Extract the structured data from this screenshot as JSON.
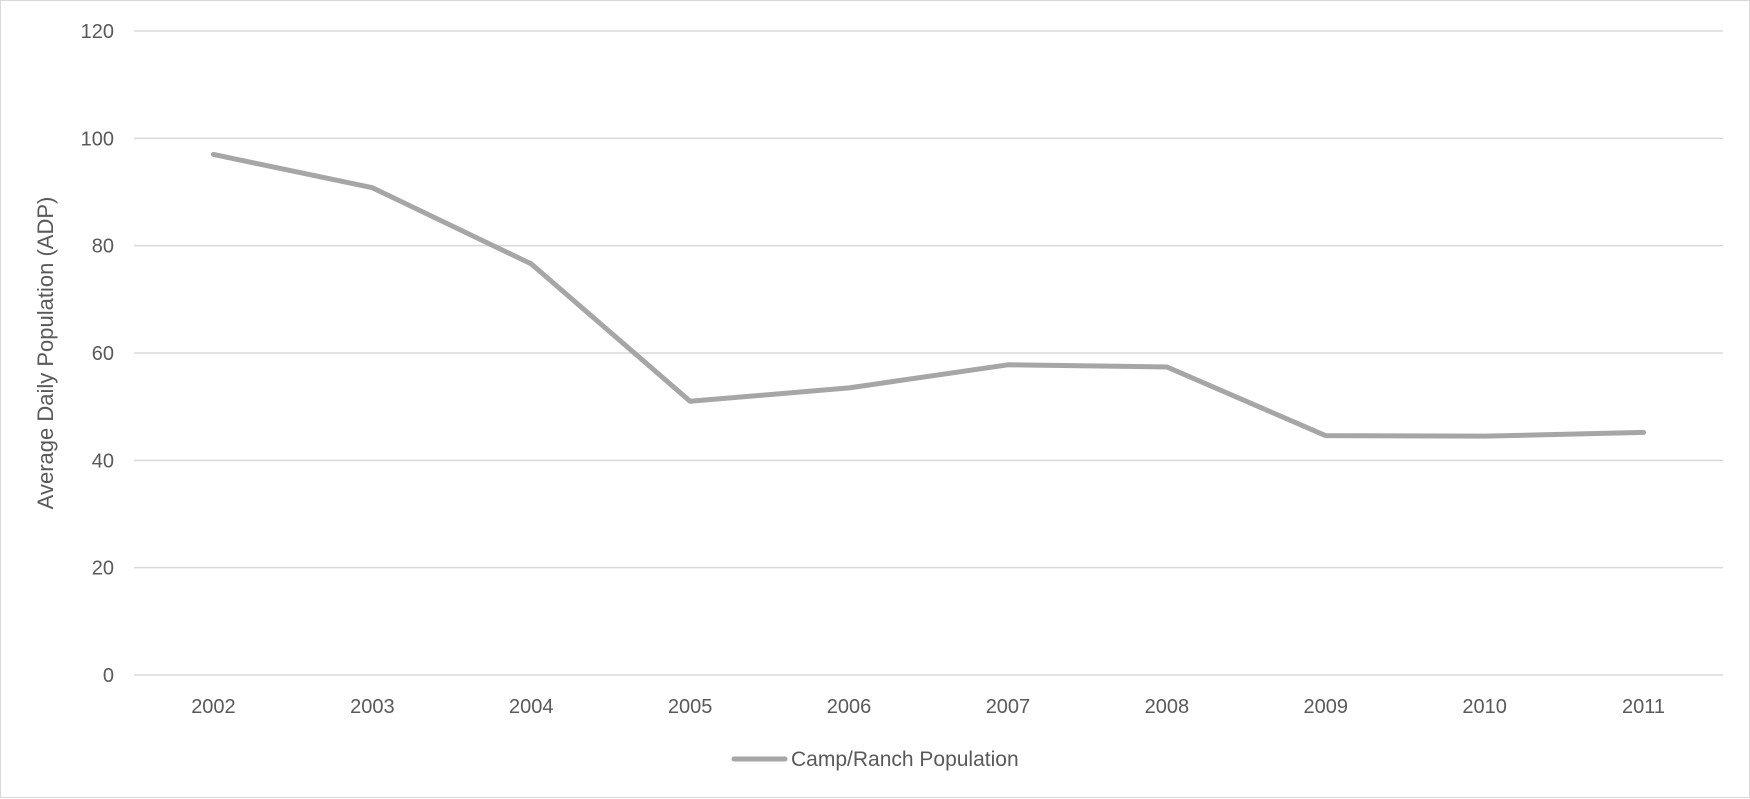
{
  "chart_data": {
    "type": "line",
    "title": "",
    "xlabel": "",
    "ylabel": "Average Daily Population (ADP)",
    "categories": [
      "2002",
      "2003",
      "2004",
      "2005",
      "2006",
      "2007",
      "2008",
      "2009",
      "2010",
      "2011"
    ],
    "series": [
      {
        "name": "Camp/Ranch Population",
        "color": "#a6a6a6",
        "values": [
          97,
          90.8,
          76.6,
          51,
          53.5,
          57.8,
          57.4,
          44.6,
          44.5,
          45.2
        ]
      }
    ],
    "ylim": [
      0,
      120
    ],
    "yticks": [
      0,
      20,
      40,
      60,
      80,
      100,
      120
    ],
    "grid": true,
    "gridColor": "#d9d9d9",
    "legend": "bottom"
  }
}
